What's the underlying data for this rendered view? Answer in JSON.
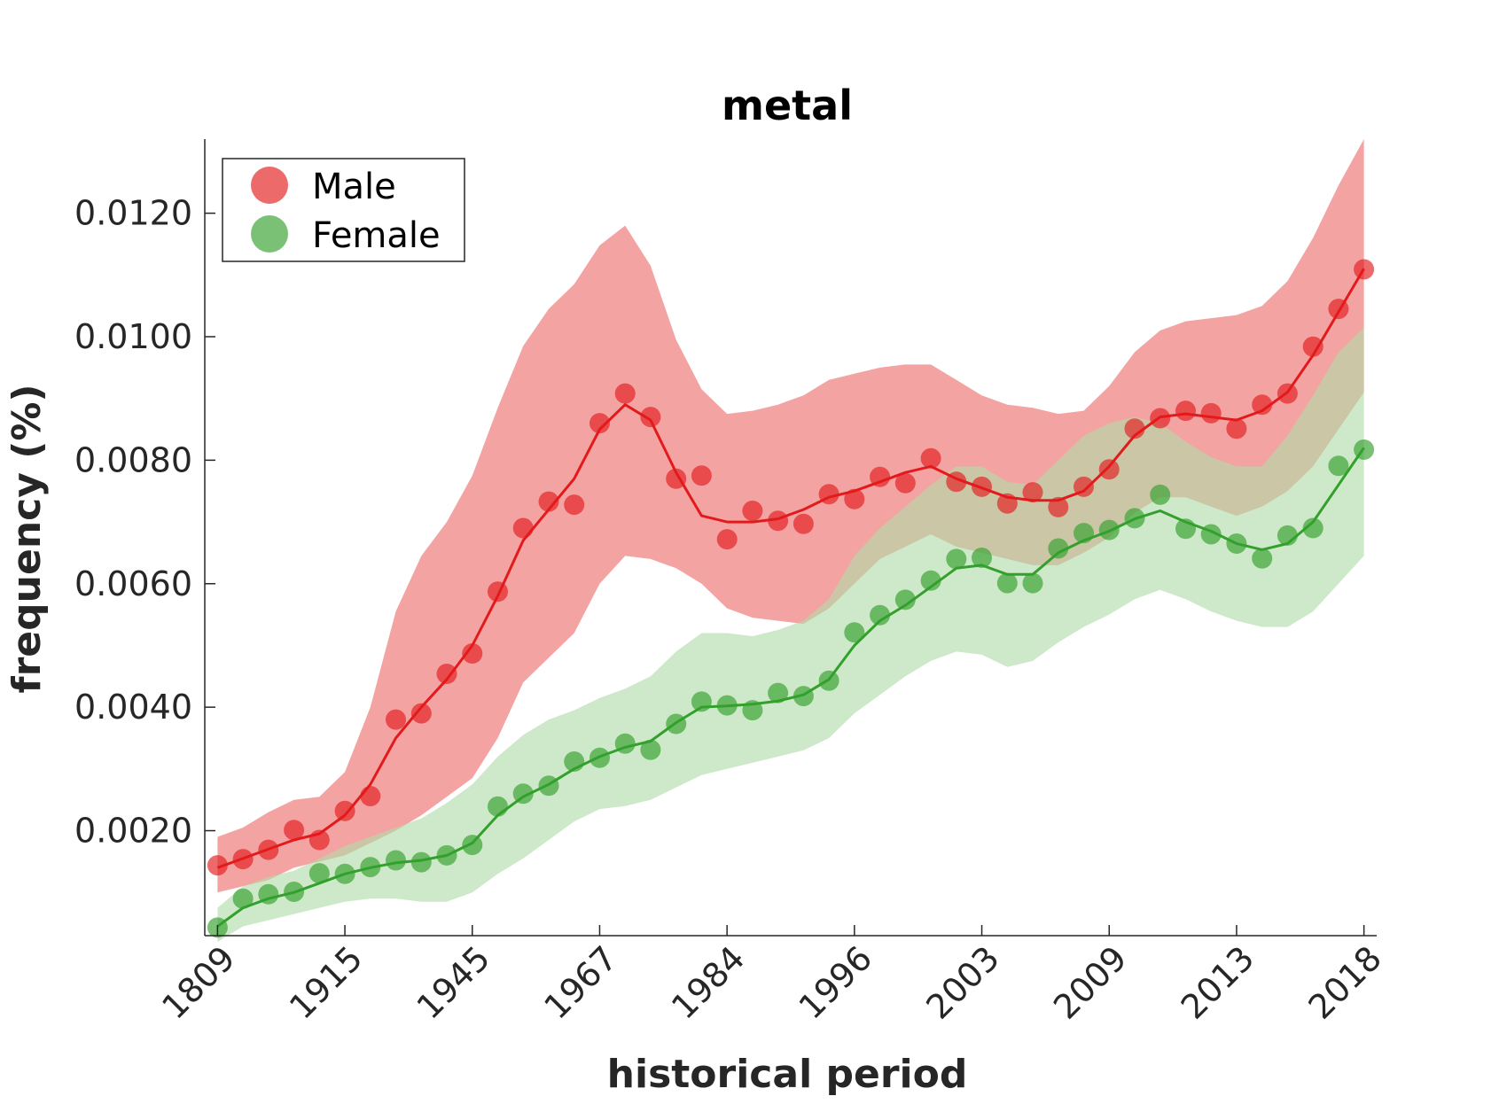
{
  "chart_data": {
    "type": "line",
    "title": "metal",
    "xlabel": "historical period",
    "ylabel": "frequency (%)",
    "x_tick_labels": [
      "1809",
      "1915",
      "1945",
      "1967",
      "1984",
      "1996",
      "2003",
      "2009",
      "2013",
      "2018"
    ],
    "y_ticks": [
      0.002,
      0.004,
      0.006,
      0.008,
      0.01,
      0.012
    ],
    "y_tick_labels": [
      "0.0020",
      "0.0040",
      "0.0060",
      "0.0080",
      "0.0100",
      "0.0120"
    ],
    "xlim": [
      -0.1,
      9.1
    ],
    "ylim": [
      0.0003,
      0.0132
    ],
    "legend_position": "top-left",
    "grid": false,
    "series": [
      {
        "name": "Male",
        "color": "#e31a1c",
        "band_color": "#f4a3a3",
        "points": [
          0.00144,
          0.00154,
          0.00169,
          0.00201,
          0.00185,
          0.00232,
          0.00256,
          0.0038,
          0.0039,
          0.00454,
          0.00487,
          0.00587,
          0.0069,
          0.00733,
          0.00728,
          0.0086,
          0.00908,
          0.0087,
          0.0077,
          0.00775,
          0.00672,
          0.00718,
          0.00702,
          0.00697,
          0.00745,
          0.00737,
          0.00773,
          0.00763,
          0.00803,
          0.00765,
          0.00757,
          0.0073,
          0.00748,
          0.00724,
          0.00757,
          0.00785,
          0.00851,
          0.00868,
          0.0088,
          0.00876,
          0.00851,
          0.0089,
          0.00908,
          0.00984,
          0.01045,
          0.01109
        ],
        "line": [
          0.0014,
          0.00155,
          0.0017,
          0.00185,
          0.00195,
          0.00225,
          0.00275,
          0.0035,
          0.004,
          0.00445,
          0.005,
          0.0058,
          0.0067,
          0.0072,
          0.0077,
          0.0085,
          0.0089,
          0.00865,
          0.0078,
          0.0071,
          0.007,
          0.007,
          0.00705,
          0.0072,
          0.0074,
          0.0075,
          0.00765,
          0.0078,
          0.0079,
          0.0077,
          0.00755,
          0.0074,
          0.00735,
          0.00735,
          0.0075,
          0.0079,
          0.0084,
          0.0087,
          0.00875,
          0.0087,
          0.00865,
          0.0088,
          0.0091,
          0.0097,
          0.0104,
          0.0111
        ],
        "upper": [
          0.0019,
          0.00205,
          0.0023,
          0.0025,
          0.00255,
          0.00295,
          0.004,
          0.00555,
          0.00645,
          0.007,
          0.00775,
          0.00885,
          0.00985,
          0.01045,
          0.01085,
          0.01148,
          0.0118,
          0.01115,
          0.00995,
          0.00915,
          0.00875,
          0.0088,
          0.0089,
          0.00905,
          0.0093,
          0.0094,
          0.0095,
          0.00955,
          0.00955,
          0.0093,
          0.00905,
          0.0089,
          0.00885,
          0.00875,
          0.0088,
          0.0092,
          0.00975,
          0.0101,
          0.01025,
          0.0103,
          0.01035,
          0.0105,
          0.0109,
          0.0116,
          0.01245,
          0.0132
        ],
        "lower": [
          0.001,
          0.0011,
          0.0012,
          0.0014,
          0.0015,
          0.0016,
          0.0018,
          0.002,
          0.00225,
          0.00255,
          0.00285,
          0.0035,
          0.0044,
          0.0048,
          0.0052,
          0.006,
          0.00645,
          0.0064,
          0.00625,
          0.006,
          0.0056,
          0.00545,
          0.0054,
          0.00535,
          0.0056,
          0.006,
          0.0064,
          0.0066,
          0.0068,
          0.0066,
          0.0065,
          0.0064,
          0.0063,
          0.0063,
          0.0065,
          0.00675,
          0.00715,
          0.0074,
          0.0074,
          0.00725,
          0.0071,
          0.00725,
          0.0075,
          0.0079,
          0.0085,
          0.0091
        ]
      },
      {
        "name": "Female",
        "color": "#33a02c",
        "band_color": "#b0dba8",
        "points": [
          0.00043,
          0.0009,
          0.00097,
          0.00101,
          0.00131,
          0.0013,
          0.00141,
          0.00152,
          0.00149,
          0.0016,
          0.00177,
          0.00239,
          0.0026,
          0.00273,
          0.00312,
          0.00318,
          0.00341,
          0.00331,
          0.00373,
          0.00409,
          0.00403,
          0.00395,
          0.00423,
          0.00418,
          0.00443,
          0.00521,
          0.00549,
          0.00574,
          0.00605,
          0.0064,
          0.00642,
          0.00601,
          0.00601,
          0.00657,
          0.00682,
          0.00687,
          0.00706,
          0.00744,
          0.00689,
          0.0068,
          0.00665,
          0.00641,
          0.00678,
          0.0069,
          0.00791,
          0.00817
        ],
        "line": [
          0.00045,
          0.00075,
          0.0009,
          0.001,
          0.00115,
          0.0013,
          0.0014,
          0.00148,
          0.00152,
          0.0016,
          0.0018,
          0.00225,
          0.00255,
          0.00275,
          0.003,
          0.0032,
          0.00335,
          0.00345,
          0.00375,
          0.004,
          0.00402,
          0.00405,
          0.0041,
          0.0042,
          0.00445,
          0.005,
          0.0054,
          0.00565,
          0.00595,
          0.00625,
          0.0063,
          0.00615,
          0.00615,
          0.0065,
          0.0067,
          0.00685,
          0.00705,
          0.00718,
          0.007,
          0.00685,
          0.00665,
          0.00655,
          0.00665,
          0.007,
          0.0076,
          0.0082
        ],
        "upper": [
          0.00075,
          0.0011,
          0.00125,
          0.00135,
          0.00155,
          0.00175,
          0.0019,
          0.00205,
          0.0022,
          0.00245,
          0.00275,
          0.0032,
          0.00355,
          0.0038,
          0.00395,
          0.00415,
          0.0043,
          0.0045,
          0.0049,
          0.0052,
          0.0052,
          0.00515,
          0.00525,
          0.0054,
          0.00575,
          0.00645,
          0.0069,
          0.00725,
          0.0076,
          0.0079,
          0.0079,
          0.00765,
          0.0076,
          0.008,
          0.0084,
          0.0086,
          0.0087,
          0.0086,
          0.0083,
          0.00805,
          0.0079,
          0.0079,
          0.0084,
          0.00905,
          0.00975,
          0.01015
        ],
        "lower": [
          0.0002,
          0.00045,
          0.00055,
          0.00065,
          0.00075,
          0.00085,
          0.0009,
          0.0009,
          0.00085,
          0.00085,
          0.001,
          0.0013,
          0.00155,
          0.00185,
          0.00215,
          0.00235,
          0.0024,
          0.0025,
          0.0027,
          0.0029,
          0.003,
          0.0031,
          0.0032,
          0.0033,
          0.0035,
          0.0039,
          0.0042,
          0.0045,
          0.00475,
          0.0049,
          0.00485,
          0.00465,
          0.00475,
          0.00505,
          0.0053,
          0.0055,
          0.00575,
          0.0059,
          0.00575,
          0.00555,
          0.0054,
          0.0053,
          0.0053,
          0.00555,
          0.006,
          0.00645
        ]
      }
    ]
  }
}
